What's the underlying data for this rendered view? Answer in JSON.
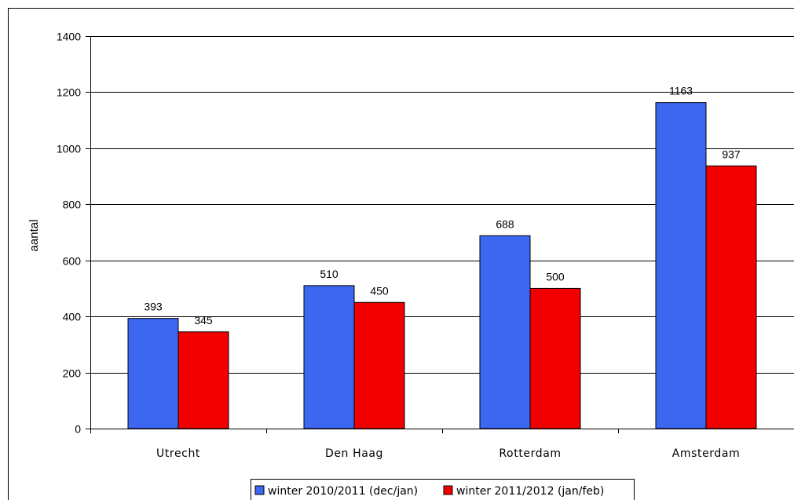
{
  "chart_data": {
    "type": "bar",
    "title": "",
    "xlabel": "",
    "ylabel": "aantal",
    "ylim": [
      0,
      1400
    ],
    "yticks": [
      0,
      200,
      400,
      600,
      800,
      1000,
      1200,
      1400
    ],
    "grid": true,
    "legend_position": "bottom",
    "categories": [
      "Utrecht",
      "Den Haag",
      "Rotterdam",
      "Amsterdam"
    ],
    "series": [
      {
        "name": "winter 2010/2011 (dec/jan)",
        "color": "#3d67f0",
        "values": [
          393,
          510,
          688,
          1163
        ]
      },
      {
        "name": "winter 2011/2012 (jan/feb)",
        "color": "#f20000",
        "values": [
          345,
          450,
          500,
          937
        ]
      }
    ]
  }
}
